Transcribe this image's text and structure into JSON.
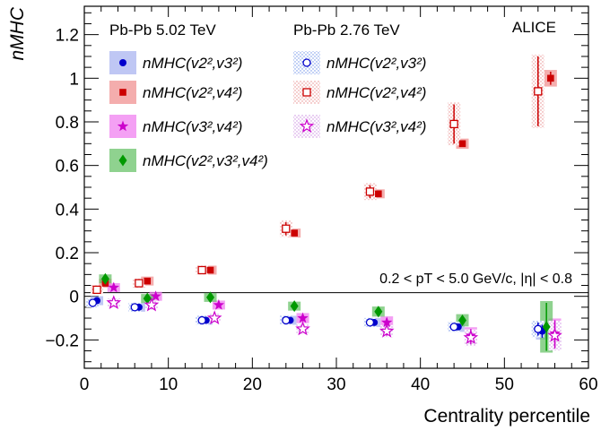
{
  "chart_data": {
    "type": "scatter",
    "title": "",
    "xlabel": "Centrality percentile",
    "ylabel": "nMHC",
    "xlim": [
      0,
      60
    ],
    "ylim": [
      -0.33,
      1.33
    ],
    "xticks": [
      "0",
      "10",
      "20",
      "30",
      "40",
      "50",
      "60"
    ],
    "yticks": [
      "−0.2",
      "0",
      "0.2",
      "0.4",
      "0.6",
      "0.8",
      "1",
      "1.2"
    ],
    "grid": false,
    "legend_position": "top-left",
    "experiment_label": "ALICE",
    "annotation": "0.2 < pT < 5.0 GeV/c, |η| < 0.8",
    "reference_line": 0,
    "legend_headers": [
      "Pb-Pb 5.02 TeV",
      "Pb-Pb 2.76 TeV"
    ],
    "series": [
      {
        "name": "nMHC(v2²,v3²)",
        "energy": "5.02 TeV",
        "marker": "filled-circle",
        "color": "#0000cc",
        "x": [
          1.5,
          6.5,
          14.5,
          24.5,
          34.5,
          44.5,
          54.5
        ],
        "y": [
          -0.02,
          -0.05,
          -0.11,
          -0.11,
          -0.12,
          -0.14,
          -0.16
        ],
        "err": [
          0.01,
          0.01,
          0.01,
          0.01,
          0.01,
          0.015,
          0.03
        ]
      },
      {
        "name": "nMHC(v2²,v4²)",
        "energy": "5.02 TeV",
        "marker": "filled-square",
        "color": "#cc0000",
        "x": [
          2.5,
          7.5,
          15,
          25,
          35,
          45,
          55.5
        ],
        "y": [
          0.06,
          0.07,
          0.12,
          0.29,
          0.47,
          0.7,
          1.0
        ],
        "err": [
          0.01,
          0.01,
          0.01,
          0.01,
          0.01,
          0.015,
          0.03
        ]
      },
      {
        "name": "nMHC(v3²,v4²)",
        "energy": "5.02 TeV",
        "marker": "filled-star",
        "color": "#cc00cc",
        "x": [
          3.5,
          8.5,
          16,
          26,
          36,
          46,
          56
        ],
        "y": [
          0.04,
          0.0,
          -0.04,
          -0.1,
          -0.12,
          -0.18,
          -0.17
        ],
        "err": [
          0.01,
          0.01,
          0.01,
          0.015,
          0.02,
          0.03,
          0.06
        ]
      },
      {
        "name": "nMHC(v2²,v3²,v4²)",
        "energy": "5.02 TeV",
        "marker": "filled-diamond",
        "color": "#009900",
        "x": [
          2.5,
          7.5,
          15,
          25,
          35,
          45,
          55
        ],
        "y": [
          0.08,
          -0.01,
          -0.005,
          -0.045,
          -0.07,
          -0.11,
          -0.14
        ],
        "err": [
          0.01,
          0.01,
          0.01,
          0.01,
          0.015,
          0.02,
          0.11
        ]
      },
      {
        "name": "nMHC(v2²,v3²)",
        "energy": "2.76 TeV",
        "marker": "open-circle",
        "color": "#0000cc",
        "x": [
          1,
          6,
          14,
          24,
          34,
          44,
          54
        ],
        "y": [
          -0.03,
          -0.05,
          -0.11,
          -0.11,
          -0.12,
          -0.14,
          -0.15
        ],
        "err": [
          0.01,
          0.01,
          0.01,
          0.01,
          0.01,
          0.015,
          0.03
        ]
      },
      {
        "name": "nMHC(v2²,v4²)",
        "energy": "2.76 TeV",
        "marker": "open-square",
        "color": "#cc0000",
        "x": [
          1.5,
          6.5,
          14,
          24,
          34,
          44,
          54
        ],
        "y": [
          0.03,
          0.06,
          0.12,
          0.31,
          0.48,
          0.79,
          0.94
        ],
        "err": [
          0.01,
          0.01,
          0.01,
          0.03,
          0.03,
          0.09,
          0.16
        ]
      },
      {
        "name": "nMHC(v3²,v4²)",
        "energy": "2.76 TeV",
        "marker": "open-star",
        "color": "#cc00cc",
        "x": [
          3.5,
          8,
          15.5,
          26,
          36,
          46,
          56
        ],
        "y": [
          -0.03,
          -0.04,
          -0.1,
          -0.15,
          -0.16,
          -0.19,
          -0.18
        ],
        "err": [
          0.01,
          0.01,
          0.01,
          0.015,
          0.02,
          0.03,
          0.06
        ]
      }
    ]
  }
}
